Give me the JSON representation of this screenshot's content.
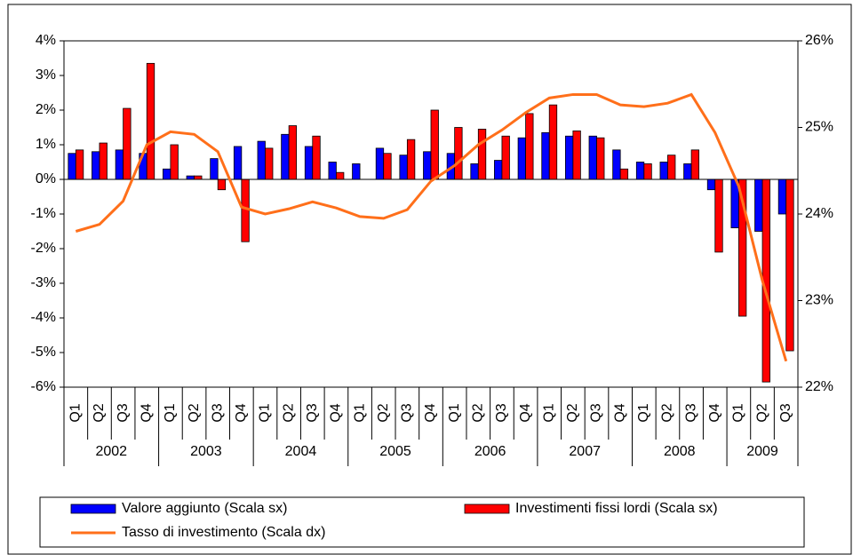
{
  "chart_data": {
    "type": "bar_line",
    "categories": [
      "Q1",
      "Q2",
      "Q3",
      "Q4",
      "Q1",
      "Q2",
      "Q3",
      "Q4",
      "Q1",
      "Q2",
      "Q3",
      "Q4",
      "Q1",
      "Q2",
      "Q3",
      "Q4",
      "Q1",
      "Q2",
      "Q3",
      "Q4",
      "Q1",
      "Q2",
      "Q3",
      "Q4",
      "Q1",
      "Q2",
      "Q3",
      "Q4",
      "Q1",
      "Q2",
      "Q3"
    ],
    "groups": [
      "2002",
      "2003",
      "2004",
      "2005",
      "2006",
      "2007",
      "2008",
      "2009"
    ],
    "series": [
      {
        "name": "Valore aggiunto (Scala sx)",
        "color": "#0000ff",
        "kind": "bar",
        "values": [
          0.75,
          0.8,
          0.85,
          0.75,
          0.3,
          0.1,
          0.6,
          0.95,
          1.1,
          1.3,
          0.95,
          0.5,
          0.45,
          0.9,
          0.7,
          0.8,
          0.75,
          0.45,
          0.55,
          1.2,
          1.35,
          1.25,
          1.25,
          0.85,
          0.5,
          0.5,
          0.45,
          -0.3,
          -1.4,
          -1.5,
          -1.0
        ]
      },
      {
        "name": "Investimenti fissi lordi (Scala sx)",
        "color": "#ff0000",
        "kind": "bar",
        "values": [
          0.85,
          1.05,
          2.05,
          3.35,
          1.0,
          0.1,
          -0.3,
          -1.8,
          0.9,
          1.55,
          1.25,
          0.2,
          0,
          0.75,
          1.15,
          2.0,
          1.5,
          1.45,
          1.25,
          1.9,
          2.15,
          1.4,
          1.2,
          0.3,
          0.45,
          0.7,
          0.85,
          -2.1,
          -3.95,
          -5.85,
          -4.95
        ]
      },
      {
        "name": "Tasso di investimento (Scala dx)",
        "color": "#ff6f1a",
        "kind": "line",
        "axis": "y2",
        "values": [
          23.8,
          23.88,
          24.15,
          24.8,
          24.95,
          24.92,
          24.72,
          24.08,
          24.0,
          24.06,
          24.14,
          24.07,
          23.97,
          23.95,
          24.05,
          24.38,
          24.56,
          24.8,
          24.97,
          25.17,
          25.34,
          25.38,
          25.38,
          25.26,
          25.24,
          25.28,
          25.38,
          24.94,
          24.32,
          23.23,
          22.3
        ]
      }
    ],
    "ylim": [
      -6,
      4
    ],
    "yticks": [
      {
        "value": 4,
        "label": "4%"
      },
      {
        "value": 3,
        "label": "3%"
      },
      {
        "value": 2,
        "label": "2%"
      },
      {
        "value": 1,
        "label": "1%"
      },
      {
        "value": 0,
        "label": "0%"
      },
      {
        "value": -1,
        "label": "-1%"
      },
      {
        "value": -2,
        "label": "-2%"
      },
      {
        "value": -3,
        "label": "-3%"
      },
      {
        "value": -4,
        "label": "-4%"
      },
      {
        "value": -5,
        "label": "-5%"
      },
      {
        "value": -6,
        "label": "-6%"
      }
    ],
    "y2lim": [
      22,
      26
    ],
    "y2ticks": [
      {
        "value": 26,
        "label": "26%"
      },
      {
        "value": 25,
        "label": "25%"
      },
      {
        "value": 24,
        "label": "24%"
      },
      {
        "value": 23,
        "label": "23%"
      },
      {
        "value": 22,
        "label": "22%"
      }
    ],
    "grid": false
  }
}
